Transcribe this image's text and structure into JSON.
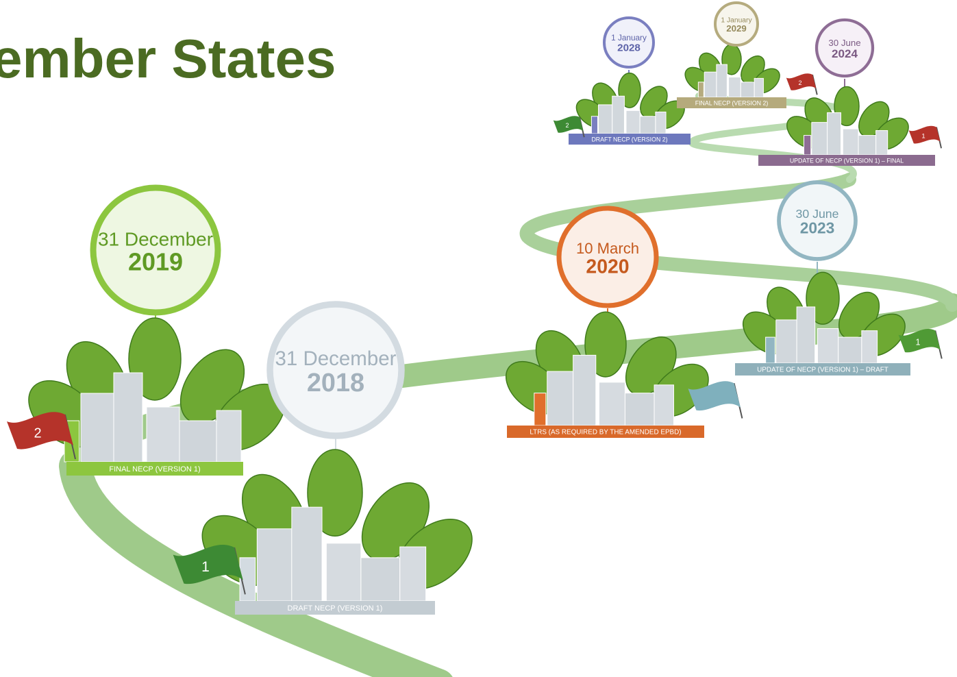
{
  "header": {
    "title": "ember States"
  },
  "milestones": [
    {
      "date": "31 December",
      "year": "2019",
      "label": "FINAL NECP (VERSION 1)",
      "flag": "2"
    },
    {
      "date": "31 December",
      "year": "2018",
      "label": "DRAFT NECP (VERSION 1)",
      "flag": "1"
    },
    {
      "date": "10 March",
      "year": "2020",
      "label": "LTRS (AS REQUIRED BY THE AMENDED EPBD)"
    },
    {
      "date": "30 June",
      "year": "2023",
      "label": "UPDATE OF NECP (VERSION 1) – DRAFT",
      "flag": "1"
    },
    {
      "date": "30 June",
      "year": "2024",
      "label": "UPDATE OF NECP (VERSION 1) – FINAL",
      "flag": "1"
    },
    {
      "date": "1 January",
      "year": "2028",
      "label": "DRAFT NECP (VERSION 2)",
      "flag": "2"
    },
    {
      "date": "1 January",
      "year": "2029",
      "label": "FINAL NECP (VERSION 2)",
      "flag": "2"
    }
  ]
}
